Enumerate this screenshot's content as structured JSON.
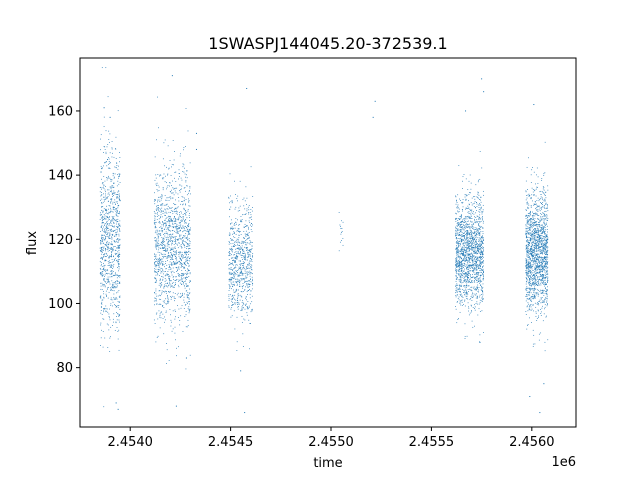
{
  "chart_data": {
    "type": "scatter",
    "title": "1SWASPJ144045.20-372539.1",
    "xlabel": "time",
    "ylabel": "flux",
    "x_offset_label": "1e6",
    "xlim": [
      2.45375,
      2.45622
    ],
    "ylim": [
      61.5,
      176.5
    ],
    "xticks": [
      {
        "value": 2.454,
        "label": "2.4540"
      },
      {
        "value": 2.4545,
        "label": "2.4545"
      },
      {
        "value": 2.455,
        "label": "2.4550"
      },
      {
        "value": 2.4555,
        "label": "2.4555"
      },
      {
        "value": 2.456,
        "label": "2.4560"
      }
    ],
    "yticks": [
      {
        "value": 80,
        "label": "80"
      },
      {
        "value": 100,
        "label": "100"
      },
      {
        "value": 120,
        "label": "120"
      },
      {
        "value": 140,
        "label": "140"
      },
      {
        "value": 160,
        "label": "160"
      }
    ],
    "grid": false,
    "color": "#1f77b4",
    "clusters": [
      {
        "x_range": [
          2.45385,
          2.45395
        ],
        "y_center": 120,
        "y_spread": 18,
        "density": 900
      },
      {
        "x_range": [
          2.45412,
          2.4543
        ],
        "y_center": 118,
        "y_spread": 15,
        "density": 1300
      },
      {
        "x_range": [
          2.45449,
          2.45461
        ],
        "y_center": 114,
        "y_spread": 12,
        "density": 700
      },
      {
        "x_range": [
          2.45504,
          2.45506
        ],
        "y_center": 121,
        "y_spread": 4,
        "density": 15
      },
      {
        "x_range": [
          2.45562,
          2.45576
        ],
        "y_center": 116,
        "y_spread": 11,
        "density": 1500
      },
      {
        "x_range": [
          2.45597,
          2.45608
        ],
        "y_center": 116,
        "y_spread": 12,
        "density": 1500
      }
    ],
    "outliers": [
      {
        "x": 2.45387,
        "y": 161
      },
      {
        "x": 2.4539,
        "y": 158
      },
      {
        "x": 2.45393,
        "y": 69
      },
      {
        "x": 2.45394,
        "y": 67
      },
      {
        "x": 2.45421,
        "y": 171
      },
      {
        "x": 2.45423,
        "y": 68
      },
      {
        "x": 2.45428,
        "y": 83
      },
      {
        "x": 2.45433,
        "y": 153
      },
      {
        "x": 2.45433,
        "y": 148
      },
      {
        "x": 2.45458,
        "y": 167
      },
      {
        "x": 2.45457,
        "y": 66
      },
      {
        "x": 2.45455,
        "y": 79
      },
      {
        "x": 2.45522,
        "y": 163
      },
      {
        "x": 2.45521,
        "y": 158
      },
      {
        "x": 2.45567,
        "y": 160
      },
      {
        "x": 2.45575,
        "y": 170
      },
      {
        "x": 2.45576,
        "y": 166
      },
      {
        "x": 2.45574,
        "y": 88
      },
      {
        "x": 2.45599,
        "y": 71
      },
      {
        "x": 2.45601,
        "y": 162
      },
      {
        "x": 2.45604,
        "y": 66
      },
      {
        "x": 2.45606,
        "y": 75
      }
    ]
  }
}
